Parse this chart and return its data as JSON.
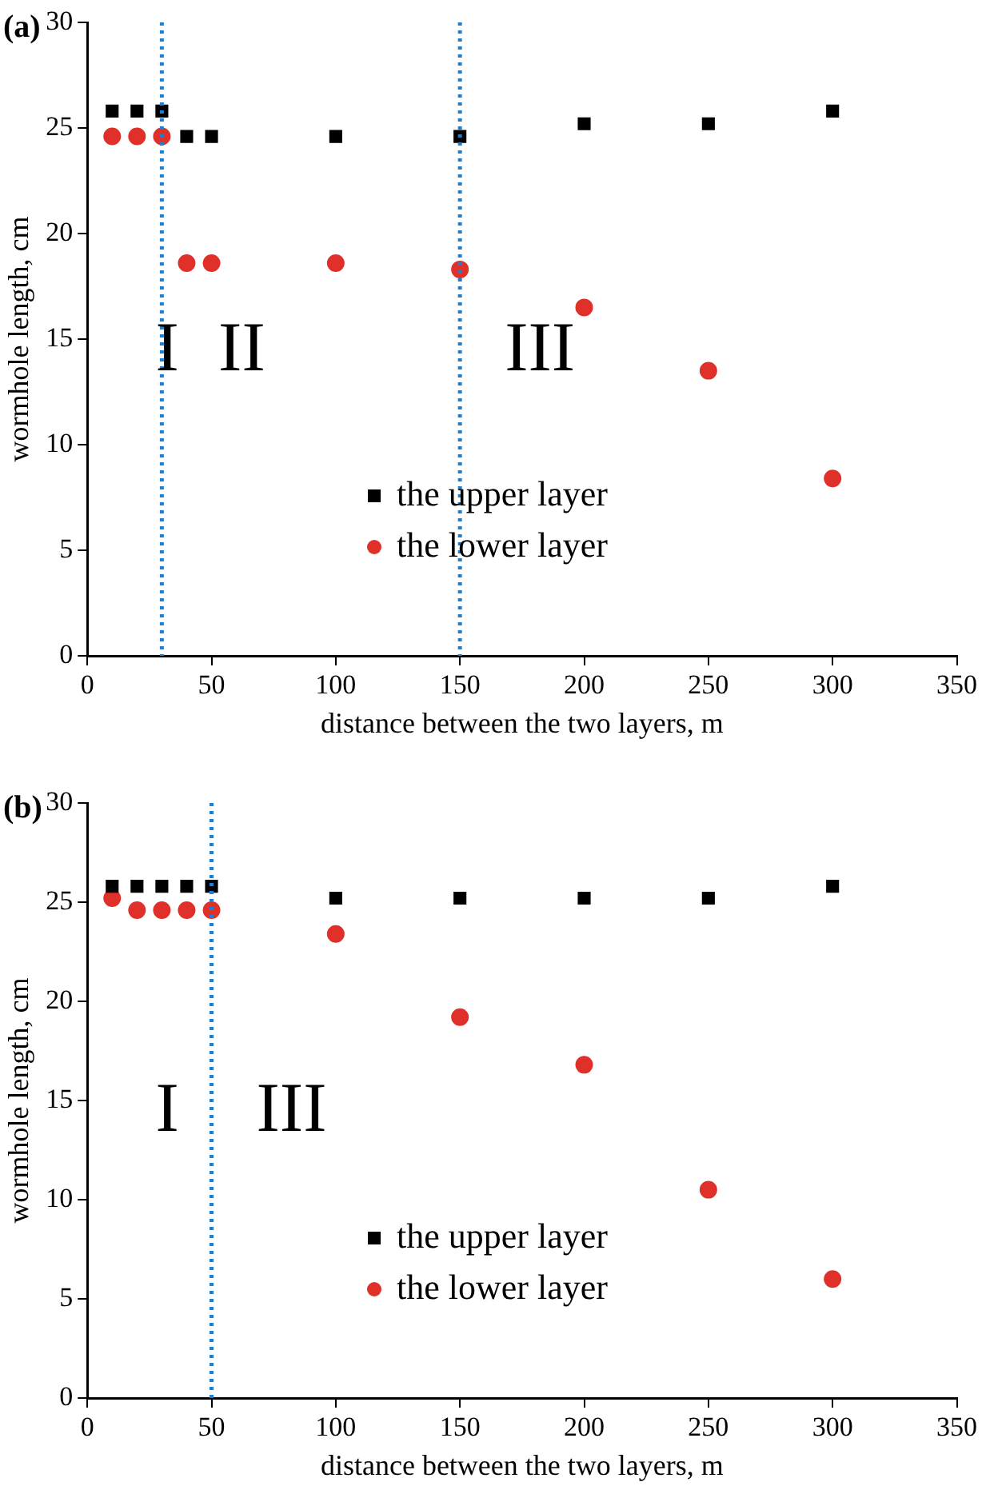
{
  "chart_data": [
    {
      "type": "scatter",
      "title": "(a)",
      "xlabel": "distance between the two layers, m",
      "ylabel": "wormhole length, cm",
      "x": [
        10,
        20,
        30,
        40,
        50,
        100,
        150,
        200,
        250,
        300
      ],
      "series": [
        {
          "name": "the upper layer",
          "color": "#000000",
          "marker": "square",
          "values": [
            25.8,
            25.8,
            25.8,
            24.6,
            24.6,
            24.6,
            24.6,
            25.2,
            25.2,
            25.8
          ]
        },
        {
          "name": "the lower layer",
          "color": "#e0302a",
          "marker": "circle",
          "values": [
            24.6,
            24.6,
            24.6,
            18.6,
            18.6,
            18.6,
            18.3,
            16.5,
            13.5,
            8.4
          ]
        }
      ],
      "xlim": [
        0,
        350
      ],
      "xticks": [
        0,
        50,
        100,
        150,
        200,
        250,
        300,
        350
      ],
      "ylim": [
        0,
        30
      ],
      "yticks": [
        0,
        5,
        10,
        15,
        20,
        25,
        30
      ],
      "ref_lines": [
        {
          "axis": "x",
          "value": 30,
          "color": "#1f7fd0",
          "line_style": "dotted"
        },
        {
          "axis": "x",
          "value": 150,
          "color": "#1f7fd0",
          "line_style": "dotted"
        }
      ],
      "annotations": [
        "I",
        "II",
        "III"
      ],
      "legend": "bottom",
      "grid": false
    },
    {
      "type": "scatter",
      "title": "(b)",
      "xlabel": "distance between the two layers, m",
      "ylabel": "wormhole length, cm",
      "x": [
        10,
        20,
        30,
        40,
        50,
        100,
        150,
        200,
        250,
        300
      ],
      "series": [
        {
          "name": "the upper layer",
          "color": "#000000",
          "marker": "square",
          "values": [
            25.8,
            25.8,
            25.8,
            25.8,
            25.8,
            25.2,
            25.2,
            25.2,
            25.2,
            25.8
          ]
        },
        {
          "name": "the lower layer",
          "color": "#e0302a",
          "marker": "circle",
          "values": [
            25.2,
            24.6,
            24.6,
            24.6,
            24.6,
            23.4,
            19.2,
            16.8,
            10.5,
            6.0
          ]
        }
      ],
      "xlim": [
        0,
        350
      ],
      "xticks": [
        0,
        50,
        100,
        150,
        200,
        250,
        300,
        350
      ],
      "ylim": [
        0,
        30
      ],
      "yticks": [
        0,
        5,
        10,
        15,
        20,
        25,
        30
      ],
      "ref_lines": [
        {
          "axis": "x",
          "value": 50,
          "color": "#1f7fd0",
          "line_style": "dotted"
        }
      ],
      "annotations": [
        "I",
        "III"
      ],
      "legend": "bottom",
      "grid": false
    }
  ]
}
